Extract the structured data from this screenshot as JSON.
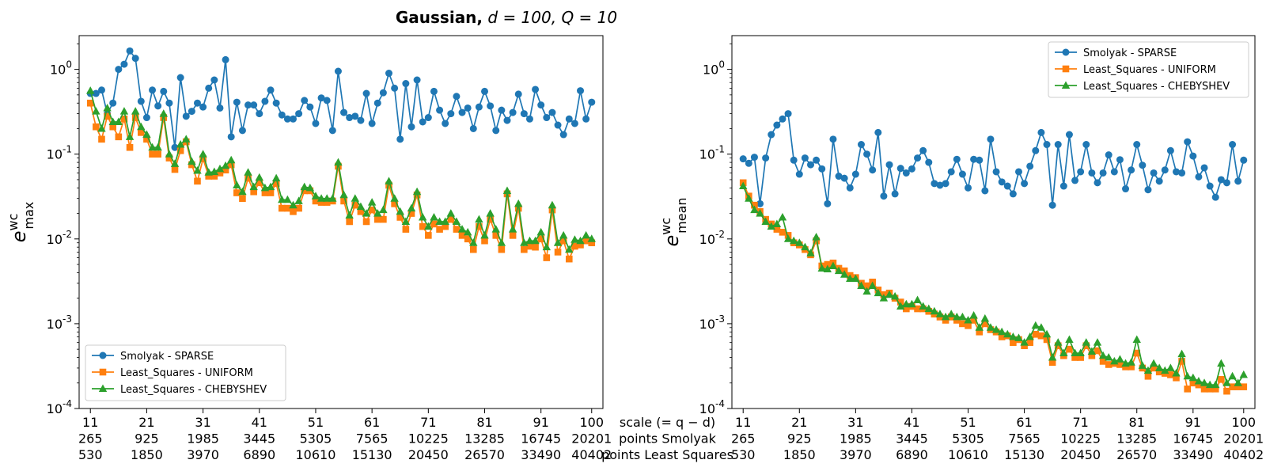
{
  "figure": {
    "title_bold": "Gaussian,",
    "title_math": " d = 100, Q = 10"
  },
  "colors": {
    "sparse": "#1f77b4",
    "uniform": "#ff7f0e",
    "chebyshev": "#2ca02c"
  },
  "shared_xaxis": {
    "scale": [
      "11",
      "21",
      "31",
      "41",
      "51",
      "61",
      "71",
      "81",
      "91",
      "100"
    ],
    "points_smolyak": [
      "265",
      "925",
      "1985",
      "3445",
      "5305",
      "7565",
      "10225",
      "13285",
      "16745",
      "20201"
    ],
    "points_least_squares": [
      "530",
      "1850",
      "3970",
      "6890",
      "10610",
      "15130",
      "20450",
      "26570",
      "33490",
      "40402"
    ],
    "row_labels": [
      "scale (= q − d)",
      "points Smolyak",
      "points Least Squares"
    ]
  },
  "chart_data": [
    {
      "type": "line",
      "ylabel": "e",
      "ylabel_sup": "wc",
      "ylabel_sub": "max",
      "y_scale": "log",
      "ylim": [
        0.0001,
        2.5
      ],
      "xlim": [
        9,
        102
      ],
      "y_ticks": [
        "10^0",
        "10^-1",
        "10^-2",
        "10^-3",
        "10^-4"
      ],
      "legend_position": "lower-left",
      "series": [
        {
          "name": "Smolyak - SPARSE",
          "marker": "circle",
          "x_start": 11,
          "values": [
            0.52,
            0.52,
            0.57,
            0.3,
            0.4,
            1.0,
            1.15,
            1.65,
            1.35,
            0.42,
            0.27,
            0.57,
            0.37,
            0.55,
            0.4,
            0.12,
            0.8,
            0.28,
            0.32,
            0.4,
            0.36,
            0.6,
            0.75,
            0.35,
            1.3,
            0.16,
            0.41,
            0.19,
            0.38,
            0.38,
            0.3,
            0.42,
            0.57,
            0.4,
            0.29,
            0.26,
            0.26,
            0.3,
            0.43,
            0.36,
            0.23,
            0.46,
            0.43,
            0.19,
            0.95,
            0.31,
            0.27,
            0.28,
            0.25,
            0.52,
            0.23,
            0.4,
            0.53,
            0.9,
            0.6,
            0.15,
            0.68,
            0.21,
            0.75,
            0.24,
            0.27,
            0.55,
            0.33,
            0.23,
            0.3,
            0.48,
            0.31,
            0.35,
            0.2,
            0.36,
            0.55,
            0.37,
            0.19,
            0.33,
            0.25,
            0.31,
            0.51,
            0.3,
            0.26,
            0.58,
            0.38,
            0.27,
            0.31,
            0.22,
            0.17,
            0.26,
            0.23,
            0.56,
            0.26,
            0.41
          ]
        },
        {
          "name": "Least_Squares - UNIFORM",
          "marker": "square",
          "x_start": 11,
          "values": [
            0.4,
            0.21,
            0.15,
            0.28,
            0.21,
            0.16,
            0.26,
            0.12,
            0.27,
            0.18,
            0.15,
            0.1,
            0.1,
            0.27,
            0.09,
            0.066,
            0.11,
            0.14,
            0.075,
            0.048,
            0.088,
            0.055,
            0.055,
            0.06,
            0.065,
            0.075,
            0.035,
            0.03,
            0.052,
            0.036,
            0.046,
            0.035,
            0.035,
            0.045,
            0.023,
            0.023,
            0.021,
            0.023,
            0.037,
            0.037,
            0.028,
            0.027,
            0.027,
            0.028,
            0.072,
            0.028,
            0.016,
            0.025,
            0.021,
            0.016,
            0.022,
            0.017,
            0.017,
            0.043,
            0.026,
            0.018,
            0.013,
            0.02,
            0.033,
            0.014,
            0.011,
            0.015,
            0.013,
            0.014,
            0.017,
            0.013,
            0.011,
            0.01,
            0.0075,
            0.014,
            0.0095,
            0.017,
            0.011,
            0.0075,
            0.034,
            0.011,
            0.023,
            0.0075,
            0.0082,
            0.008,
            0.01,
            0.006,
            0.022,
            0.007,
            0.0095,
            0.0058,
            0.0082,
            0.0085,
            0.0095,
            0.009
          ]
        },
        {
          "name": "Least_Squares - CHEBYSHEV",
          "marker": "triangle",
          "x_start": 11,
          "values": [
            0.56,
            0.32,
            0.2,
            0.35,
            0.24,
            0.24,
            0.32,
            0.16,
            0.32,
            0.21,
            0.17,
            0.12,
            0.12,
            0.3,
            0.1,
            0.077,
            0.13,
            0.15,
            0.082,
            0.064,
            0.1,
            0.061,
            0.062,
            0.067,
            0.073,
            0.085,
            0.043,
            0.036,
            0.061,
            0.041,
            0.053,
            0.04,
            0.041,
            0.052,
            0.029,
            0.029,
            0.025,
            0.028,
            0.041,
            0.04,
            0.032,
            0.03,
            0.03,
            0.03,
            0.08,
            0.033,
            0.019,
            0.03,
            0.024,
            0.02,
            0.027,
            0.02,
            0.022,
            0.048,
            0.03,
            0.021,
            0.016,
            0.023,
            0.036,
            0.018,
            0.014,
            0.018,
            0.016,
            0.016,
            0.02,
            0.016,
            0.013,
            0.012,
            0.009,
            0.017,
            0.011,
            0.02,
            0.013,
            0.009,
            0.037,
            0.013,
            0.026,
            0.009,
            0.0095,
            0.0095,
            0.012,
            0.008,
            0.025,
            0.009,
            0.011,
            0.0075,
            0.0098,
            0.0095,
            0.011,
            0.01
          ]
        }
      ]
    },
    {
      "type": "line",
      "ylabel": "e",
      "ylabel_sup": "wc",
      "ylabel_sub": "mean",
      "y_scale": "log",
      "ylim": [
        0.0001,
        2.5
      ],
      "xlim": [
        9,
        102
      ],
      "y_ticks": [
        "10^0",
        "10^-1",
        "10^-2",
        "10^-3",
        "10^-4"
      ],
      "legend_position": "upper-right",
      "series": [
        {
          "name": "Smolyak - SPARSE",
          "marker": "circle",
          "x_start": 11,
          "values": [
            0.088,
            0.078,
            0.092,
            0.026,
            0.09,
            0.17,
            0.22,
            0.26,
            0.3,
            0.085,
            0.058,
            0.09,
            0.075,
            0.085,
            0.067,
            0.026,
            0.15,
            0.055,
            0.052,
            0.04,
            0.058,
            0.13,
            0.1,
            0.065,
            0.18,
            0.032,
            0.075,
            0.034,
            0.068,
            0.06,
            0.067,
            0.09,
            0.11,
            0.08,
            0.045,
            0.043,
            0.045,
            0.062,
            0.087,
            0.058,
            0.04,
            0.087,
            0.085,
            0.037,
            0.15,
            0.062,
            0.047,
            0.042,
            0.034,
            0.062,
            0.045,
            0.072,
            0.11,
            0.18,
            0.13,
            0.025,
            0.13,
            0.042,
            0.17,
            0.049,
            0.062,
            0.13,
            0.06,
            0.046,
            0.06,
            0.098,
            0.062,
            0.086,
            0.039,
            0.065,
            0.13,
            0.074,
            0.038,
            0.06,
            0.048,
            0.065,
            0.11,
            0.062,
            0.06,
            0.14,
            0.095,
            0.054,
            0.069,
            0.042,
            0.031,
            0.05,
            0.046,
            0.13,
            0.048,
            0.085
          ]
        },
        {
          "name": "Least_Squares - UNIFORM",
          "marker": "square",
          "x_start": 11,
          "values": [
            0.046,
            0.032,
            0.025,
            0.021,
            0.017,
            0.015,
            0.013,
            0.012,
            0.011,
            0.009,
            0.0085,
            0.0075,
            0.0065,
            0.0095,
            0.0048,
            0.005,
            0.0052,
            0.0045,
            0.0042,
            0.0037,
            0.0035,
            0.003,
            0.0028,
            0.0031,
            0.0025,
            0.0022,
            0.0023,
            0.002,
            0.0018,
            0.0015,
            0.0016,
            0.0015,
            0.0015,
            0.0014,
            0.0013,
            0.0012,
            0.0011,
            0.0012,
            0.0011,
            0.001,
            0.00095,
            0.0011,
            0.0008,
            0.001,
            0.00085,
            0.0008,
            0.0007,
            0.00072,
            0.0006,
            0.00065,
            0.00055,
            0.0006,
            0.00075,
            0.00072,
            0.00065,
            0.00035,
            0.00055,
            0.00042,
            0.0005,
            0.0004,
            0.0004,
            0.00055,
            0.00042,
            0.00048,
            0.00036,
            0.00033,
            0.00034,
            0.00033,
            0.00031,
            0.00031,
            0.00045,
            0.0003,
            0.00024,
            0.0003,
            0.00027,
            0.00026,
            0.00025,
            0.00023,
            0.00036,
            0.00017,
            0.0002,
            0.00019,
            0.00017,
            0.00017,
            0.00017,
            0.00022,
            0.00016,
            0.00018,
            0.00018,
            0.00018
          ]
        },
        {
          "name": "Least_Squares - CHEBYSHEV",
          "marker": "triangle",
          "x_start": 11,
          "values": [
            0.042,
            0.03,
            0.022,
            0.02,
            0.016,
            0.014,
            0.015,
            0.018,
            0.01,
            0.0095,
            0.009,
            0.008,
            0.0068,
            0.0105,
            0.0045,
            0.0044,
            0.0048,
            0.0042,
            0.0038,
            0.0034,
            0.0034,
            0.0028,
            0.0024,
            0.0028,
            0.0023,
            0.002,
            0.0022,
            0.0021,
            0.0016,
            0.0017,
            0.0017,
            0.0019,
            0.0016,
            0.0015,
            0.0014,
            0.0013,
            0.0012,
            0.0013,
            0.0012,
            0.0012,
            0.0011,
            0.00125,
            0.0009,
            0.00115,
            0.0009,
            0.00085,
            0.0008,
            0.00075,
            0.0007,
            0.00068,
            0.0006,
            0.0007,
            0.00095,
            0.0009,
            0.00075,
            0.0004,
            0.0006,
            0.00045,
            0.00065,
            0.00045,
            0.00045,
            0.0006,
            0.00047,
            0.0006,
            0.00042,
            0.0004,
            0.00036,
            0.00038,
            0.00034,
            0.00035,
            0.00065,
            0.00032,
            0.00028,
            0.00034,
            0.0003,
            0.00028,
            0.0003,
            0.00026,
            0.00044,
            0.00024,
            0.00023,
            0.00021,
            0.0002,
            0.00019,
            0.00019,
            0.00034,
            0.0002,
            0.00024,
            0.0002,
            0.00025
          ]
        }
      ]
    }
  ]
}
